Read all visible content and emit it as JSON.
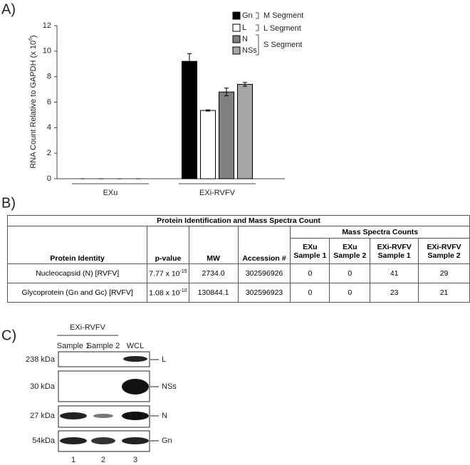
{
  "panels": {
    "a": "A)",
    "b": "B)",
    "c": "C)"
  },
  "chart_data": {
    "type": "bar",
    "ylabel": "RNA Count Relative to GAPDH  (x 10",
    "ylabel_exp": "6",
    "ylabel_end": ")",
    "categories": [
      "EXu",
      "EXi-RVFV"
    ],
    "series": [
      {
        "name": "Gn",
        "color": "#000000",
        "values": [
          0,
          9.2
        ],
        "errors": [
          0,
          0.6
        ]
      },
      {
        "name": "L",
        "color": "#ffffff",
        "values": [
          0,
          5.35
        ],
        "errors": [
          0,
          0.05
        ]
      },
      {
        "name": "N",
        "color": "#808080",
        "values": [
          0,
          6.8
        ],
        "errors": [
          0,
          0.3
        ]
      },
      {
        "name": "NSs",
        "color": "#a6a6a6",
        "values": [
          0,
          7.4
        ],
        "errors": [
          0,
          0.15
        ]
      }
    ],
    "segments": [
      "M Segment",
      "L Segment",
      "S Segment"
    ],
    "ylim": [
      0,
      12
    ],
    "yticks": [
      0,
      2,
      4,
      6,
      8,
      10,
      12
    ]
  },
  "table": {
    "title": "Protein Identification and Mass Spectra Count",
    "group_header": "Mass Spectra Counts",
    "headers": [
      "Protein Identity",
      "p-value",
      "MW",
      "Accession #",
      "EXu Sample 1",
      "EXu Sample 2",
      "EXi-RVFV Sample 1",
      "EXi-RVFV Sample 2"
    ],
    "rows": [
      {
        "protein": "Nucleocapsid (N) [RVFV]",
        "p_base": "7.77 x 10",
        "p_exp": "-15",
        "mw": "2734.0",
        "accession": "302596926",
        "counts": [
          "0",
          "0",
          "41",
          "29"
        ]
      },
      {
        "protein": "Glycoprotein (Gn and Gc) [RVFV]",
        "p_base": "1.08 x 10",
        "p_exp": "-10",
        "mw": "130844.1",
        "accession": "302596923",
        "counts": [
          "0",
          "0",
          "23",
          "21"
        ]
      }
    ]
  },
  "blot": {
    "group": "EXi-RVFV",
    "lanes": [
      "Sample 1",
      "Sample 2",
      "WCL"
    ],
    "lane_numbers": [
      "1",
      "2",
      "3"
    ],
    "rows": [
      {
        "size": "238 kDa",
        "protein": "L"
      },
      {
        "size": "30 kDa",
        "protein": "NSs"
      },
      {
        "size": "27 kDa",
        "protein": "N"
      },
      {
        "size": "54kDa",
        "protein": "Gn"
      }
    ]
  }
}
